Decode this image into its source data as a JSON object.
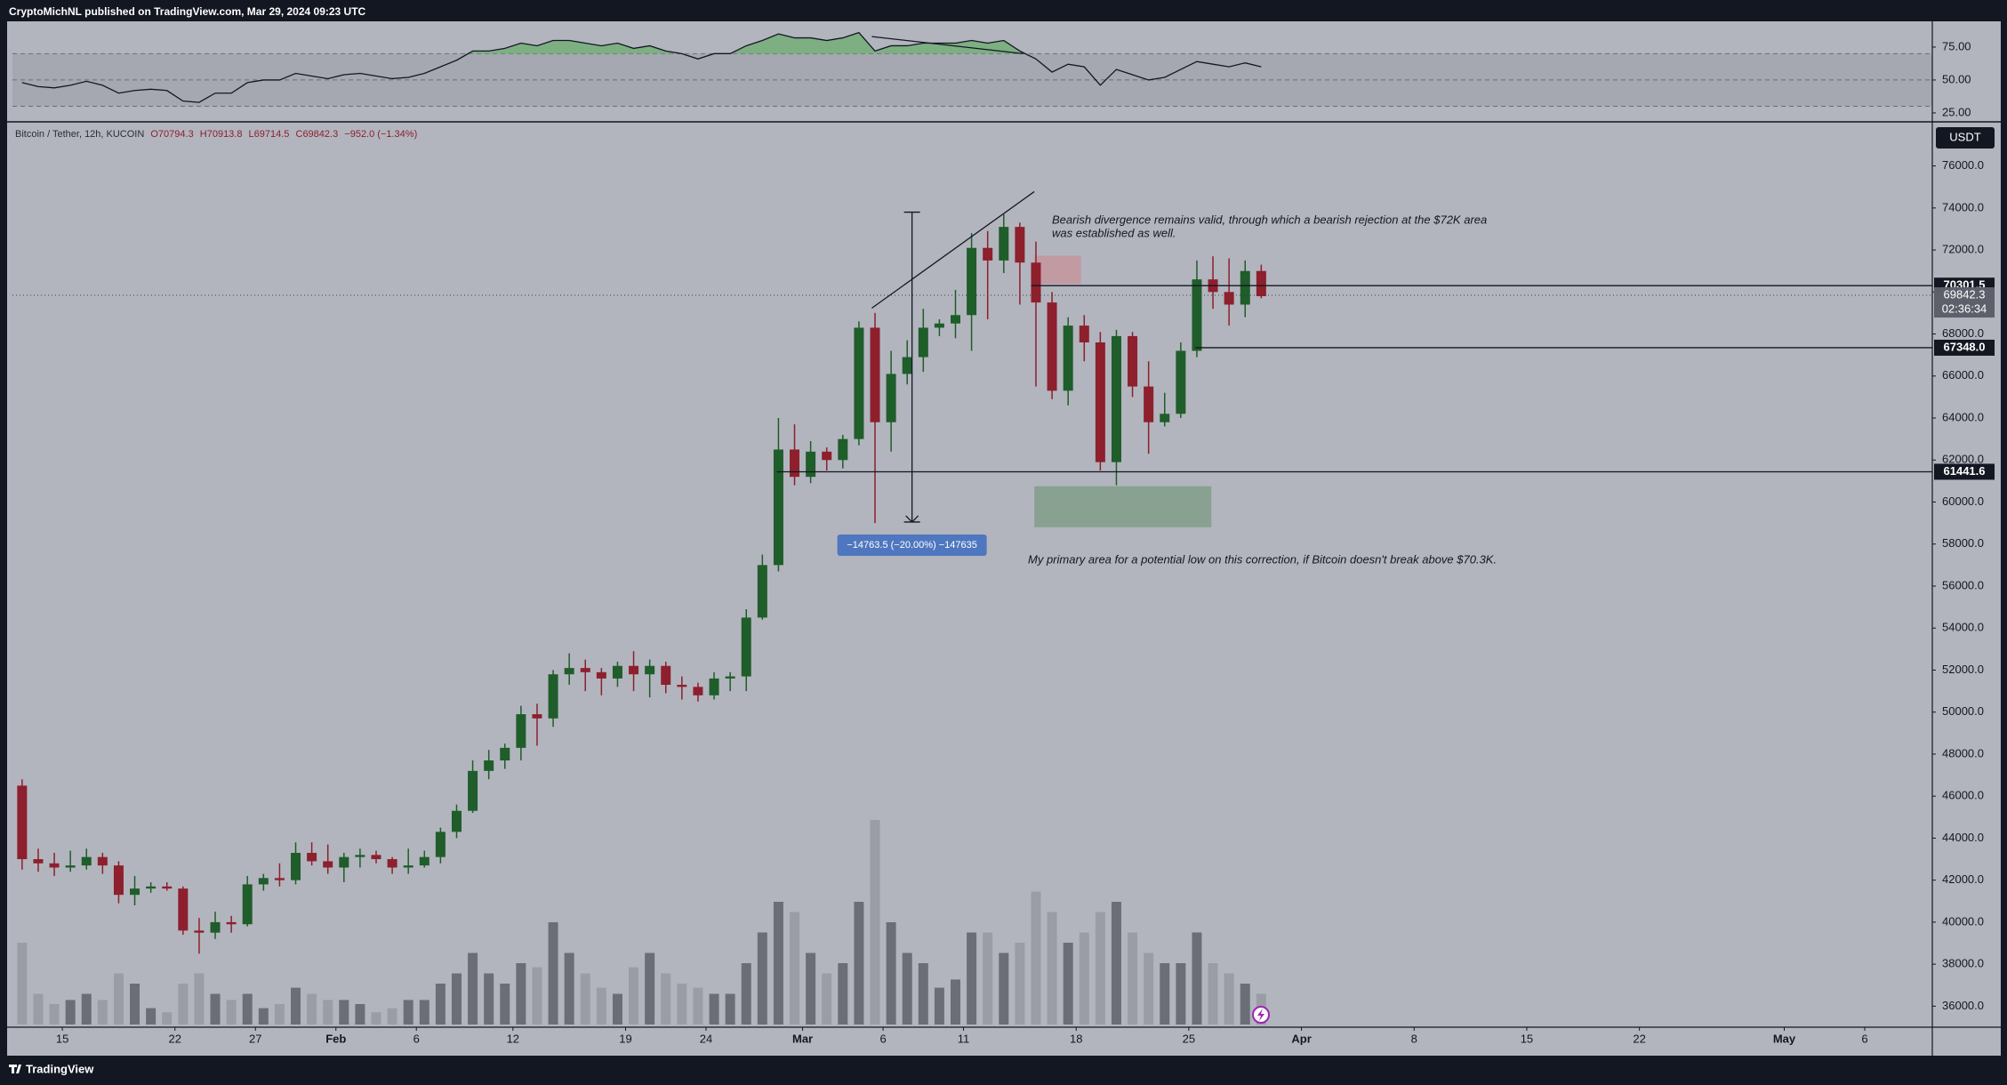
{
  "header": "CryptoMichNL published on TradingView.com, Mar 29, 2024 09:23 UTC",
  "footer": "TradingView",
  "chart_data": {
    "type": "candlestick",
    "currency": "USDT",
    "legend": {
      "symbol": "Bitcoin / Tether, 12h, KUCOIN",
      "ohlc": [
        "O70794.3",
        "H70913.8",
        "L69714.5",
        "C69842.3",
        "−952.0 (−1.34%)"
      ]
    },
    "up_color": "#1f5d2a",
    "down_color": "#8e1f2d",
    "xlim": [
      11.9,
      131.2
    ],
    "xticks": [
      15,
      22,
      27,
      {
        "value": 32,
        "label": "Feb"
      },
      {
        "value": 37,
        "label": "6"
      },
      {
        "value": 43,
        "label": "12"
      },
      {
        "value": 50,
        "label": "19"
      },
      {
        "value": 55,
        "label": "24"
      },
      {
        "value": 61,
        "label": "Mar"
      },
      {
        "value": 66,
        "label": "6"
      },
      {
        "value": 71,
        "label": "11"
      },
      {
        "value": 78,
        "label": "18"
      },
      {
        "value": 85,
        "label": "25"
      },
      {
        "value": 92,
        "label": "Apr"
      },
      {
        "value": 99,
        "label": "8"
      },
      {
        "value": 106,
        "label": "15"
      },
      {
        "value": 113,
        "label": "22"
      },
      {
        "value": 122,
        "label": "May"
      },
      {
        "value": 127,
        "label": "6"
      }
    ],
    "ylim": [
      35000,
      78100
    ],
    "yticks": [
      {
        "value": 36000,
        "label": "36000.0"
      },
      {
        "value": 38000,
        "label": "38000.0"
      },
      {
        "value": 40000,
        "label": "40000.0"
      },
      {
        "value": 42000,
        "label": "42000.0"
      },
      {
        "value": 44000,
        "label": "44000.0"
      },
      {
        "value": 46000,
        "label": "46000.0"
      },
      {
        "value": 48000,
        "label": "48000.0"
      },
      {
        "value": 50000,
        "label": "50000.0"
      },
      {
        "value": 52000,
        "label": "52000.0"
      },
      {
        "value": 54000,
        "label": "54000.0"
      },
      {
        "value": 56000,
        "label": "56000.0"
      },
      {
        "value": 58000,
        "label": "58000.0"
      },
      {
        "value": 60000,
        "label": "60000.0"
      },
      {
        "value": 62000,
        "label": "62000.0"
      },
      {
        "value": 64000,
        "label": "64000.0"
      },
      {
        "value": 66000,
        "label": "66000.0"
      },
      {
        "value": 68000,
        "label": "68000.0"
      },
      {
        "value": 70000,
        "label": "70000.0"
      },
      {
        "value": 72000,
        "label": "72000.0"
      },
      {
        "value": 74000,
        "label": "74000.0"
      },
      {
        "value": 76000,
        "label": "76000.0"
      }
    ],
    "x": [
      12,
      13,
      14,
      15,
      16,
      17,
      18,
      19,
      20,
      21,
      22,
      23,
      24,
      25,
      26,
      27,
      28,
      29,
      30,
      31,
      32,
      33,
      34,
      35,
      36,
      37,
      38,
      39,
      40,
      41,
      42,
      43,
      44,
      45,
      46,
      47,
      48,
      49,
      50,
      51,
      52,
      53,
      54,
      55,
      56,
      57,
      58,
      59,
      60,
      61,
      62,
      63,
      64,
      65,
      66,
      67,
      68,
      69,
      70,
      71,
      72,
      73,
      74,
      75,
      76,
      77,
      78,
      79,
      80,
      81,
      82,
      83,
      84,
      85,
      86,
      87,
      88,
      89
    ],
    "ohlc": [
      [
        46500,
        46800,
        42500,
        43000
      ],
      [
        43000,
        43500,
        42400,
        42800
      ],
      [
        42800,
        43300,
        42200,
        42600
      ],
      [
        42600,
        43400,
        42400,
        42700
      ],
      [
        42700,
        43500,
        42500,
        43100
      ],
      [
        43100,
        43300,
        42300,
        42700
      ],
      [
        42700,
        42900,
        40900,
        41300
      ],
      [
        41300,
        42200,
        40800,
        41600
      ],
      [
        41600,
        41900,
        41400,
        41700
      ],
      [
        41700,
        41900,
        41500,
        41600
      ],
      [
        41600,
        41700,
        39400,
        39600
      ],
      [
        39600,
        40200,
        38500,
        39500
      ],
      [
        39500,
        40500,
        39200,
        40000
      ],
      [
        40000,
        40300,
        39500,
        39900
      ],
      [
        39900,
        42200,
        39800,
        41800
      ],
      [
        41800,
        42300,
        41500,
        42100
      ],
      [
        42100,
        42800,
        41700,
        42000
      ],
      [
        42000,
        43800,
        41800,
        43300
      ],
      [
        43300,
        43800,
        42700,
        42900
      ],
      [
        42900,
        43700,
        42300,
        42600
      ],
      [
        42600,
        43300,
        41900,
        43100
      ],
      [
        43100,
        43500,
        42600,
        43200
      ],
      [
        43200,
        43400,
        42800,
        43000
      ],
      [
        43000,
        43100,
        42300,
        42600
      ],
      [
        42600,
        43500,
        42300,
        42700
      ],
      [
        42700,
        43400,
        42600,
        43100
      ],
      [
        43100,
        44500,
        42800,
        44300
      ],
      [
        44300,
        45600,
        44000,
        45300
      ],
      [
        45300,
        47700,
        45200,
        47200
      ],
      [
        47200,
        48200,
        46800,
        47700
      ],
      [
        47700,
        48500,
        47300,
        48300
      ],
      [
        48300,
        50300,
        47700,
        49900
      ],
      [
        49900,
        50400,
        48400,
        49700
      ],
      [
        49700,
        52000,
        49300,
        51800
      ],
      [
        51800,
        52800,
        51300,
        52100
      ],
      [
        52100,
        52500,
        51000,
        51900
      ],
      [
        51900,
        52100,
        50800,
        51600
      ],
      [
        51600,
        52400,
        51200,
        52200
      ],
      [
        52200,
        52900,
        51000,
        51800
      ],
      [
        51800,
        52500,
        50700,
        52200
      ],
      [
        52200,
        52400,
        50900,
        51300
      ],
      [
        51300,
        51700,
        50600,
        51200
      ],
      [
        51200,
        51400,
        50500,
        50800
      ],
      [
        50800,
        51900,
        50600,
        51600
      ],
      [
        51600,
        51900,
        51000,
        51700
      ],
      [
        51700,
        54900,
        51000,
        54500
      ],
      [
        54500,
        57500,
        54400,
        57000
      ],
      [
        57000,
        64000,
        56700,
        62500
      ],
      [
        62500,
        63700,
        60800,
        61200
      ],
      [
        61200,
        62900,
        60900,
        62400
      ],
      [
        62400,
        62600,
        61500,
        62000
      ],
      [
        62000,
        63200,
        61600,
        63000
      ],
      [
        63000,
        68600,
        62700,
        68300
      ],
      [
        68300,
        69000,
        59000,
        63800
      ],
      [
        63800,
        67200,
        62400,
        66100
      ],
      [
        66100,
        67700,
        65600,
        66900
      ],
      [
        66900,
        69200,
        66200,
        68300
      ],
      [
        68300,
        68700,
        67900,
        68500
      ],
      [
        68500,
        70100,
        67800,
        68900
      ],
      [
        68900,
        72800,
        67200,
        72100
      ],
      [
        72100,
        72900,
        68700,
        71500
      ],
      [
        71500,
        73700,
        70900,
        73100
      ],
      [
        73100,
        73300,
        69400,
        71400
      ],
      [
        71400,
        72400,
        65500,
        69500
      ],
      [
        69500,
        70000,
        64900,
        65300
      ],
      [
        65300,
        68800,
        64600,
        68400
      ],
      [
        68400,
        68900,
        66700,
        67600
      ],
      [
        67600,
        68100,
        61500,
        61900
      ],
      [
        61900,
        68200,
        60800,
        67900
      ],
      [
        67900,
        68100,
        65000,
        65500
      ],
      [
        65500,
        66700,
        62300,
        63800
      ],
      [
        63800,
        65200,
        63600,
        64200
      ],
      [
        64200,
        67600,
        64000,
        67200
      ],
      [
        67200,
        71500,
        66900,
        70600
      ],
      [
        70600,
        71700,
        69200,
        70000
      ],
      [
        70000,
        71600,
        68400,
        69400
      ],
      [
        69400,
        71500,
        68800,
        71000
      ],
      [
        71000,
        71300,
        69700,
        69800
      ]
    ],
    "volume": [
      40,
      15,
      10,
      12,
      15,
      12,
      25,
      20,
      8,
      6,
      20,
      25,
      15,
      12,
      15,
      8,
      10,
      18,
      15,
      12,
      12,
      10,
      6,
      8,
      12,
      12,
      20,
      25,
      35,
      25,
      20,
      30,
      28,
      50,
      35,
      25,
      18,
      15,
      28,
      35,
      25,
      20,
      18,
      15,
      15,
      30,
      45,
      60,
      55,
      35,
      25,
      30,
      60,
      100,
      50,
      35,
      30,
      18,
      22,
      45,
      45,
      35,
      40,
      65,
      55,
      40,
      45,
      55,
      60,
      45,
      35,
      30,
      30,
      45,
      30,
      25,
      20,
      15
    ],
    "rsi": {
      "color": "#131722",
      "overbought_color": "#6fae73",
      "ylim": [
        18.2,
        93.2
      ],
      "yticks": [
        {
          "value": 25,
          "label": "25.00"
        },
        {
          "value": 50,
          "label": "50.00"
        },
        {
          "value": 75,
          "label": "75.00"
        }
      ],
      "levels": [
        30,
        50,
        70
      ],
      "values": [
        48,
        45,
        44,
        46,
        49,
        46,
        40,
        42,
        43,
        42,
        34,
        33,
        40,
        40,
        48,
        50,
        50,
        55,
        53,
        51,
        54,
        55,
        53,
        51,
        52,
        55,
        60,
        65,
        72,
        72,
        74,
        78,
        76,
        80,
        80,
        78,
        76,
        78,
        74,
        76,
        72,
        70,
        66,
        70,
        70,
        76,
        80,
        85,
        82,
        82,
        80,
        82,
        86,
        72,
        76,
        76,
        78,
        78,
        78,
        80,
        78,
        80,
        72,
        66,
        56,
        62,
        60,
        46,
        58,
        54,
        50,
        52,
        58,
        64,
        62,
        60,
        63,
        60
      ],
      "divergence": {
        "x": [
          65.3,
          74.7
        ],
        "y": [
          83,
          70
        ]
      }
    },
    "last": {
      "value": 69842.3,
      "label": "69842.3",
      "countdown": "02:36:34"
    },
    "levels": [
      {
        "value": 70301.5,
        "label": "70301.5",
        "from": 75.2
      },
      {
        "value": 67348.0,
        "label": "67348.0",
        "from": 85.4
      },
      {
        "value": 61441.6,
        "label": "61441.6",
        "from": 59.4
      }
    ],
    "zones": [
      {
        "x": [
          75.4,
          78.3
        ],
        "y": [
          70390,
          71730
        ],
        "color": "#c4959c"
      },
      {
        "x": [
          75.4,
          86.4
        ],
        "y": [
          58800,
          60750
        ],
        "color": "#819d88"
      }
    ],
    "trend_line": {
      "x": [
        65.3,
        75.4
      ],
      "y": [
        69230,
        74780
      ]
    },
    "measure": {
      "x": 67.8,
      "y": [
        73800,
        59050
      ],
      "label": "−14763.5 (−20.00%) −147635"
    },
    "annotations": [
      "Bearish divergence remains valid, through which a bearish rejection at the $72K area",
      "was established as well.",
      "My primary area for a potential low on this correction, if Bitcoin doesn't break above $70.3K."
    ]
  }
}
